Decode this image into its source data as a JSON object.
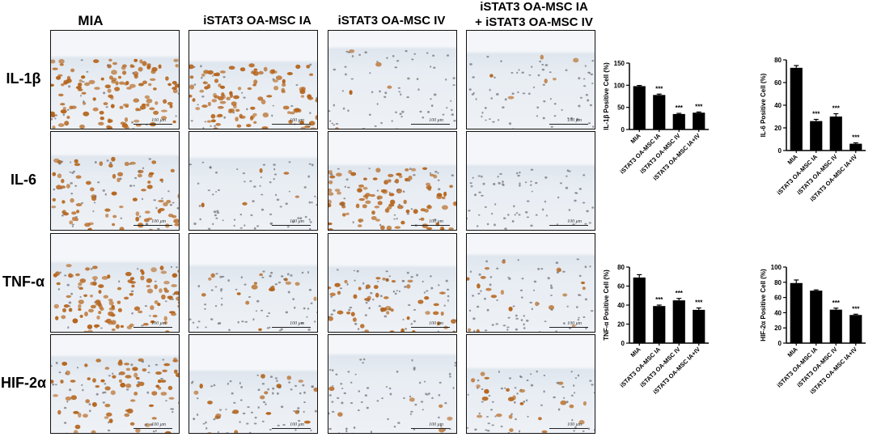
{
  "column_headers": [
    {
      "lines": [
        "MIA"
      ]
    },
    {
      "lines": [
        "iSTAT3 OA-MSC IA"
      ]
    },
    {
      "lines": [
        "iSTAT3 OA-MSC IV"
      ]
    },
    {
      "lines": [
        "iSTAT3 OA-MSC IA",
        "+ iSTAT3 OA-MSC IV"
      ]
    }
  ],
  "row_labels": [
    "IL-1β",
    "IL-6",
    "TNF-α",
    "HIF-2α"
  ],
  "scale_bar_label": "100 μm",
  "colors": {
    "stain_brown": "#b5651d",
    "background_blue": "#e8eef6",
    "bar": "#000000"
  },
  "stain_levels": [
    [
      0.9,
      0.75,
      0.05,
      0.08
    ],
    [
      0.6,
      0.08,
      0.7,
      0.03
    ],
    [
      0.8,
      0.15,
      0.45,
      0.25
    ],
    [
      0.55,
      0.2,
      0.1,
      0.2
    ]
  ],
  "chart_data": [
    {
      "type": "bar",
      "categories": [
        "MIA",
        "iSTAT3 OA-MSC IA",
        "iSTAT3 OA-MSC IV",
        "iSTAT3 OA-MSC IA+IV"
      ],
      "values": [
        98,
        78,
        35,
        38
      ],
      "errors": [
        1.5,
        2,
        1.5,
        1.5
      ],
      "annotations": [
        "",
        "***",
        "***",
        "***"
      ],
      "ylabel": "IL-1β  Positive Cell (%)",
      "ylim": [
        0,
        150
      ],
      "yticks": [
        0,
        50,
        100,
        150
      ]
    },
    {
      "type": "bar",
      "categories": [
        "MIA",
        "iSTAT3 OA-MSC IA",
        "iSTAT3 OA-MSC IV",
        "iSTAT3 OA-MSC IA+IV"
      ],
      "values": [
        73,
        26,
        30,
        6
      ],
      "errors": [
        2,
        1.5,
        2.5,
        0.8
      ],
      "annotations": [
        "",
        "***",
        "***",
        "***"
      ],
      "ylabel": "IL-6 Positive Cell (%)",
      "ylim": [
        0,
        80
      ],
      "yticks": [
        0,
        20,
        40,
        60,
        80
      ]
    },
    {
      "type": "bar",
      "categories": [
        "MIA",
        "iSTAT3 OA-MSC IA",
        "iSTAT3 OA-MSC IV",
        "iSTAT3 OA-MSC IA+IV"
      ],
      "values": [
        69,
        39,
        45,
        35
      ],
      "errors": [
        3,
        1,
        2,
        2
      ],
      "annotations": [
        "",
        "***",
        "***",
        "***"
      ],
      "ylabel": "TNF-α  Positive Cell (%)",
      "ylim": [
        0,
        80
      ],
      "yticks": [
        0,
        20,
        40,
        60,
        80
      ]
    },
    {
      "type": "bar",
      "categories": [
        "MIA",
        "iSTAT3 OA-MSC IA",
        "iSTAT3 OA-MSC IV",
        "iSTAT3 OA-MSC IA+IV"
      ],
      "values": [
        79,
        69,
        44,
        37
      ],
      "errors": [
        4,
        1,
        2,
        1
      ],
      "annotations": [
        "",
        "",
        "***",
        "***"
      ],
      "ylabel": "HIF-2α  Positive Cell (%)",
      "ylim": [
        0,
        100
      ],
      "yticks": [
        0,
        20,
        40,
        60,
        80,
        100
      ]
    }
  ]
}
